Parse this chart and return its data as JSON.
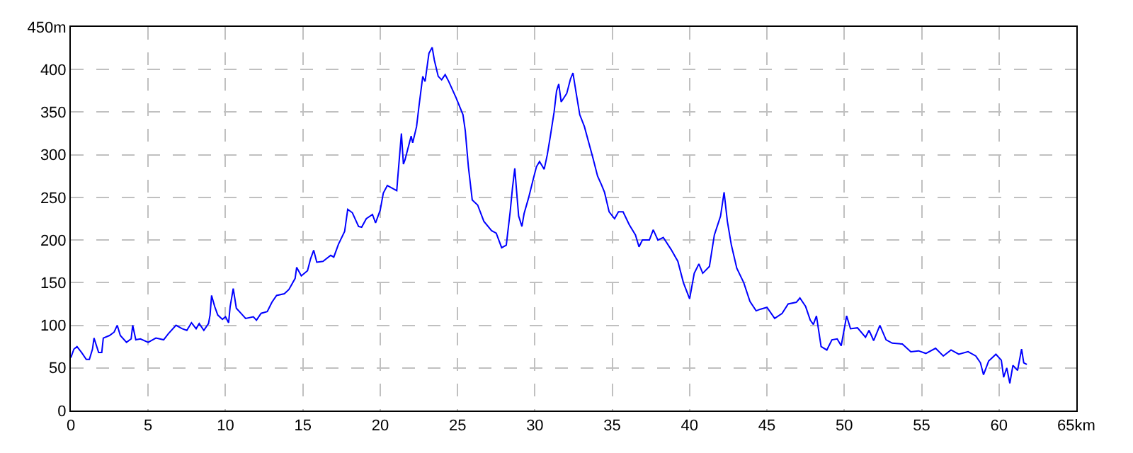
{
  "chart_data": {
    "type": "line",
    "marker": "none",
    "line_style": "solid",
    "grid": true,
    "xlim": [
      0,
      65
    ],
    "ylim": [
      0,
      450
    ],
    "xticks": [
      0,
      5,
      10,
      15,
      20,
      25,
      30,
      35,
      40,
      45,
      50,
      55,
      60,
      {
        "value": 65,
        "label": "65km"
      }
    ],
    "yticks": [
      0,
      50,
      100,
      150,
      200,
      250,
      300,
      350,
      400,
      {
        "value": 450,
        "label": "450m"
      }
    ],
    "x": [
      0,
      0.2,
      0.4,
      0.7,
      1.0,
      1.2,
      1.4,
      1.5,
      1.8,
      2.0,
      2.1,
      2.5,
      2.8,
      3.0,
      3.2,
      3.6,
      3.9,
      4.0,
      4.2,
      4.5,
      5.0,
      5.5,
      6.0,
      6.3,
      6.8,
      7.2,
      7.5,
      7.8,
      8.1,
      8.3,
      8.6,
      8.9,
      9.0,
      9.1,
      9.3,
      9.5,
      9.8,
      10.0,
      10.2,
      10.3,
      10.5,
      10.7,
      11.0,
      11.3,
      11.8,
      12.0,
      12.3,
      12.7,
      13.0,
      13.3,
      13.8,
      14.1,
      14.5,
      14.6,
      14.9,
      15.3,
      15.5,
      15.7,
      15.9,
      16.3,
      16.8,
      17.0,
      17.3,
      17.7,
      17.9,
      18.2,
      18.6,
      18.8,
      19.1,
      19.5,
      19.7,
      20.0,
      20.2,
      20.46,
      21.07,
      21.13,
      21.37,
      21.5,
      21.6,
      22.0,
      22.1,
      22.35,
      22.5,
      22.75,
      22.9,
      23.15,
      23.36,
      23.5,
      23.75,
      23.97,
      24.2,
      24.43,
      24.9,
      25.35,
      25.5,
      25.7,
      25.95,
      26.3,
      26.7,
      27.2,
      27.5,
      27.85,
      28.15,
      28.4,
      28.55,
      28.7,
      28.8,
      28.95,
      29.16,
      29.3,
      29.6,
      29.9,
      30.1,
      30.3,
      30.6,
      30.8,
      31.0,
      31.24,
      31.4,
      31.54,
      31.7,
      32.06,
      32.3,
      32.46,
      32.67,
      32.9,
      33.2,
      33.44,
      33.74,
      34.05,
      34.3,
      34.5,
      34.8,
      35.15,
      35.4,
      35.7,
      36.1,
      36.5,
      36.73,
      36.95,
      37.4,
      37.65,
      37.95,
      38.3,
      38.8,
      39.24,
      39.6,
      40.0,
      40.3,
      40.6,
      40.85,
      41.28,
      41.6,
      42.0,
      42.23,
      42.44,
      42.7,
      43.05,
      43.5,
      43.9,
      44.3,
      44.6,
      45.0,
      45.5,
      45.98,
      46.37,
      46.9,
      47.13,
      47.5,
      47.8,
      48.0,
      48.2,
      48.5,
      48.87,
      49.2,
      49.54,
      49.8,
      50.15,
      50.4,
      50.85,
      51.37,
      51.6,
      51.9,
      52.3,
      52.7,
      53.1,
      53.75,
      54.3,
      54.8,
      55.27,
      55.9,
      56.4,
      56.9,
      57.4,
      58.0,
      58.5,
      58.8,
      59.0,
      59.33,
      59.8,
      60.15,
      60.3,
      60.5,
      60.7,
      60.9,
      61.2,
      61.46,
      61.6,
      61.8
    ],
    "series": [
      {
        "color": "#0000ff",
        "values": [
          62,
          72,
          75,
          68,
          60,
          60,
          72,
          85,
          68,
          68,
          85,
          88,
          92,
          100,
          88,
          80,
          84,
          100,
          83,
          84,
          80,
          85,
          83,
          90,
          100,
          96,
          94,
          103,
          96,
          102,
          94,
          102,
          112,
          135,
          122,
          112,
          107,
          110,
          103,
          122,
          143,
          120,
          114,
          108,
          110,
          106,
          114,
          116,
          127,
          135,
          137,
          142,
          155,
          168,
          158,
          164,
          178,
          188,
          174,
          175,
          182,
          180,
          195,
          210,
          236,
          232,
          216,
          215,
          225,
          230,
          220,
          235,
          255,
          264,
          258,
          272,
          325,
          289,
          294,
          322,
          314,
          333,
          356,
          392,
          386,
          419,
          426,
          411,
          392,
          388,
          394,
          386,
          367,
          347,
          328,
          286,
          247,
          241,
          222,
          211,
          208,
          191,
          194,
          233,
          261,
          284,
          261,
          228,
          216,
          231,
          250,
          272,
          286,
          292,
          283,
          300,
          322,
          350,
          375,
          383,
          362,
          372,
          389,
          396,
          372,
          347,
          333,
          317,
          297,
          275,
          265,
          256,
          233,
          225,
          233,
          233,
          218,
          206,
          192,
          200,
          200,
          212,
          200,
          203,
          189,
          175,
          150,
          131,
          161,
          172,
          161,
          169,
          206,
          228,
          256,
          222,
          194,
          167,
          150,
          128,
          117,
          119,
          121,
          108,
          114,
          125,
          127,
          132,
          122,
          106,
          101,
          111,
          75,
          71,
          83,
          84,
          76,
          111,
          96,
          97,
          86,
          94,
          82,
          100,
          83,
          79,
          78,
          69,
          70,
          67,
          73,
          64,
          71,
          66,
          69,
          64,
          56,
          42,
          58,
          66,
          59,
          39,
          50,
          32,
          53,
          47,
          72,
          56,
          54
        ]
      }
    ]
  }
}
